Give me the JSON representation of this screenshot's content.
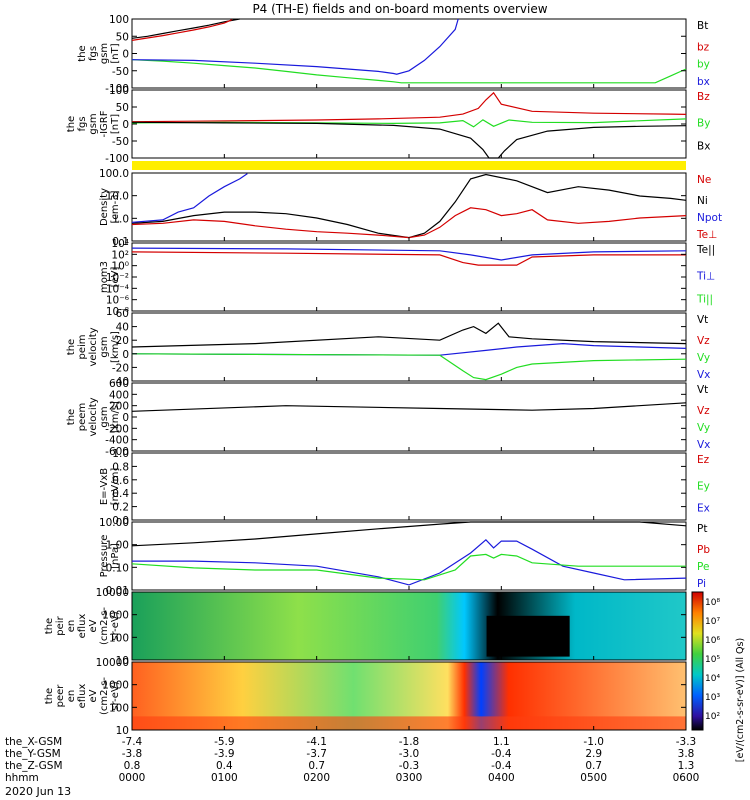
{
  "title": "P4 (TH-E) fields and on-board moments overview",
  "date_label": "2020 Jun 13",
  "colors": {
    "black": "#000000",
    "red": "#d40000",
    "green": "#22dd22",
    "blue": "#1a1adc",
    "yellow": "#ffee00"
  },
  "chart_data": [
    {
      "type": "line",
      "id": "fgs",
      "ylabel": [
        "the",
        "fgs",
        "gsm",
        "[nT]"
      ],
      "ylim": [
        -100,
        100
      ],
      "ticks": [
        "100",
        "50",
        "0",
        "-50",
        "-100"
      ],
      "legend": [
        {
          "name": "Bt",
          "color": "black"
        },
        {
          "name": "bz",
          "color": "red"
        },
        {
          "name": "by",
          "color": "green"
        },
        {
          "name": "bx",
          "color": "blue"
        }
      ],
      "series": [
        {
          "name": "Bt",
          "color": "black",
          "x": [
            0,
            10,
            20,
            30,
            40,
            50,
            60,
            70
          ],
          "y": [
            44,
            50,
            58,
            66,
            74,
            82,
            92,
            100
          ]
        },
        {
          "name": "bz",
          "color": "red",
          "x": [
            0,
            10,
            20,
            30,
            40,
            50,
            60,
            65
          ],
          "y": [
            38,
            45,
            52,
            60,
            68,
            77,
            88,
            98
          ]
        },
        {
          "name": "by",
          "color": "green",
          "x": [
            0,
            20,
            40,
            60,
            80,
            100,
            120,
            140,
            160,
            170,
            175,
            340,
            350,
            360
          ],
          "y": [
            -18,
            -22,
            -28,
            -35,
            -42,
            -52,
            -62,
            -70,
            -78,
            -82,
            -85,
            -85,
            -65,
            -45
          ]
        },
        {
          "name": "bx",
          "color": "blue",
          "x": [
            0,
            40,
            80,
            120,
            160,
            170,
            172,
            180,
            190,
            200,
            210,
            212
          ],
          "y": [
            -18,
            -20,
            -28,
            -38,
            -52,
            -58,
            -60,
            -50,
            -20,
            20,
            70,
            100
          ]
        }
      ]
    },
    {
      "type": "line",
      "id": "fgs-dsl",
      "ylabel": [
        "the",
        "fgs",
        "gsm",
        "-IGRF",
        "[nT]"
      ],
      "ylim": [
        -120,
        120
      ],
      "ticks": [
        "100",
        "50",
        "0",
        "-50",
        "-100"
      ],
      "legend": [
        {
          "name": "Bz",
          "color": "red"
        },
        {
          "name": "By",
          "color": "green"
        },
        {
          "name": "Bx",
          "color": "black"
        }
      ],
      "series": [
        {
          "name": "Bz",
          "color": "red",
          "x": [
            0,
            40,
            80,
            120,
            160,
            200,
            215,
            225,
            230,
            235,
            240,
            260,
            300,
            350,
            360
          ],
          "y": [
            8,
            10,
            12,
            14,
            18,
            24,
            35,
            55,
            85,
            110,
            70,
            45,
            38,
            35,
            34
          ]
        },
        {
          "name": "By",
          "color": "green",
          "x": [
            0,
            60,
            120,
            170,
            200,
            215,
            222,
            228,
            235,
            245,
            260,
            300,
            360
          ],
          "y": [
            4,
            6,
            4,
            2,
            4,
            12,
            -10,
            15,
            -8,
            14,
            6,
            5,
            18
          ]
        },
        {
          "name": "Bx",
          "color": "black",
          "x": [
            0,
            60,
            120,
            170,
            200,
            220,
            228,
            232,
            238,
            242,
            250,
            270,
            300,
            330,
            360
          ],
          "y": [
            6,
            4,
            2,
            -5,
            -18,
            -50,
            -90,
            -120,
            -120,
            -95,
            -55,
            -25,
            -12,
            -8,
            -6
          ]
        }
      ]
    },
    {
      "type": "line",
      "id": "density",
      "ylabel": [
        "Density",
        "[cm-3]"
      ],
      "ylim": [
        0.1,
        300
      ],
      "log": true,
      "ticks": [
        "100.0",
        "10.0",
        "1.0",
        "0.1"
      ],
      "legend": [
        {
          "name": "Ne",
          "color": "red"
        },
        {
          "name": "Ni",
          "color": "black"
        },
        {
          "name": "Npot",
          "color": "blue"
        },
        {
          "name": "Te⊥",
          "color": "red"
        }
      ],
      "series": [
        {
          "name": "Ni",
          "color": "black",
          "x": [
            0,
            20,
            40,
            60,
            80,
            100,
            120,
            140,
            160,
            180,
            190,
            200,
            210,
            220,
            230,
            250,
            270,
            290,
            310,
            330,
            350,
            360
          ],
          "y": [
            0.8,
            1.0,
            2.0,
            3.0,
            3.0,
            2.5,
            1.5,
            0.7,
            0.25,
            0.15,
            0.25,
            1.0,
            10,
            150,
            250,
            120,
            30,
            60,
            40,
            20,
            15,
            12
          ]
        },
        {
          "name": "Ne",
          "color": "red",
          "x": [
            0,
            20,
            40,
            60,
            80,
            100,
            120,
            140,
            160,
            180,
            190,
            200,
            210,
            220,
            230,
            240,
            250,
            260,
            270,
            290,
            310,
            330,
            360
          ],
          "y": [
            0.7,
            0.8,
            1.2,
            1.0,
            0.6,
            0.4,
            0.3,
            0.25,
            0.2,
            0.15,
            0.2,
            0.5,
            2,
            5,
            4,
            2,
            2.5,
            4,
            1.2,
            0.8,
            1.0,
            1.5,
            2.0
          ]
        },
        {
          "name": "Npot",
          "color": "blue",
          "x": [
            0,
            20,
            30,
            40,
            50,
            60,
            70,
            75
          ],
          "y": [
            0.9,
            1.2,
            3,
            5,
            20,
            60,
            150,
            280
          ]
        }
      ]
    },
    {
      "type": "line",
      "id": "moms",
      "ylabel": [
        "mom3",
        "[eV]"
      ],
      "ylim": [
        1,
        10000
      ],
      "log": true,
      "ticks": [
        "10⁴",
        "10²",
        "10⁰",
        "10⁻²",
        "10⁻⁴",
        "10⁻⁶",
        "10⁻⁸"
      ],
      "legend": [
        {
          "name": "Te||",
          "color": "black"
        },
        {
          "name": "Ti⊥",
          "color": "blue"
        },
        {
          "name": "Ti||",
          "color": "green"
        }
      ],
      "series": [
        {
          "name": "Ti⊥",
          "color": "blue",
          "x": [
            0,
            100,
            200,
            220,
            240,
            260,
            300,
            360
          ],
          "y": [
            5000,
            4500,
            3500,
            2000,
            1000,
            2000,
            3000,
            3500
          ]
        },
        {
          "name": "Te⊥",
          "color": "red",
          "x": [
            0,
            100,
            200,
            215,
            225,
            250,
            260,
            300,
            360
          ],
          "y": [
            3000,
            2500,
            2000,
            700,
            500,
            500,
            1500,
            2000,
            2000
          ]
        }
      ]
    },
    {
      "type": "line",
      "id": "peim",
      "ylabel": [
        "the",
        "peim",
        "velocity",
        "gsm",
        "[km/s]"
      ],
      "ylim": [
        -40,
        60
      ],
      "ticks": [
        "60",
        "40",
        "20",
        "0",
        "-20",
        "-40"
      ],
      "legend": [
        {
          "name": "Vt",
          "color": "black"
        },
        {
          "name": "Vz",
          "color": "red"
        },
        {
          "name": "Vy",
          "color": "green"
        },
        {
          "name": "Vx",
          "color": "blue"
        }
      ],
      "series": [
        {
          "name": "Vt",
          "color": "black",
          "x": [
            0,
            80,
            160,
            200,
            215,
            222,
            230,
            238,
            245,
            260,
            300,
            360
          ],
          "y": [
            10,
            15,
            25,
            20,
            35,
            40,
            30,
            45,
            25,
            22,
            18,
            15
          ]
        },
        {
          "name": "Vx",
          "color": "blue",
          "x": [
            0,
            200,
            230,
            250,
            280,
            300,
            360
          ],
          "y": [
            0,
            -2,
            5,
            10,
            15,
            12,
            8
          ]
        },
        {
          "name": "Vy",
          "color": "green",
          "x": [
            0,
            200,
            215,
            222,
            230,
            240,
            250,
            260,
            300,
            360
          ],
          "y": [
            0,
            -2,
            -25,
            -35,
            -38,
            -30,
            -20,
            -15,
            -10,
            -8
          ]
        }
      ]
    },
    {
      "type": "line",
      "id": "peem",
      "ylabel": [
        "the",
        "peem",
        "velocity",
        "gsm",
        "[km/s]"
      ],
      "ylim": [
        -600,
        600
      ],
      "ticks": [
        "600",
        "400",
        "200",
        "0",
        "-200",
        "-400",
        "-600"
      ],
      "legend": [
        {
          "name": "Vt",
          "color": "black"
        },
        {
          "name": "Vz",
          "color": "red"
        },
        {
          "name": "Vy",
          "color": "green"
        },
        {
          "name": "Vx",
          "color": "blue"
        }
      ],
      "series": [
        {
          "name": "Vt",
          "color": "black",
          "x": [
            0,
            100,
            200,
            260,
            300,
            360
          ],
          "y": [
            100,
            200,
            150,
            120,
            150,
            250
          ]
        }
      ]
    },
    {
      "type": "line",
      "id": "efield",
      "ylabel": [
        "E=-VxB",
        "[mV/m]"
      ],
      "ylim": [
        0,
        1
      ],
      "ticks": [
        "1.0",
        "0.8",
        "0.6",
        "0.4",
        "0.2",
        "0.0"
      ],
      "legend": [
        {
          "name": "Ez",
          "color": "red"
        },
        {
          "name": "Ey",
          "color": "green"
        },
        {
          "name": "Ex",
          "color": "blue"
        }
      ],
      "series": []
    },
    {
      "type": "line",
      "id": "pressure",
      "ylabel": [
        "Pressure",
        "[nPa]"
      ],
      "ylim": [
        0.002,
        20
      ],
      "log": true,
      "ticks": [
        "10.00",
        "1.00",
        "0.10",
        "0.01"
      ],
      "legend": [
        {
          "name": "Pt",
          "color": "black"
        },
        {
          "name": "Pb",
          "color": "red"
        },
        {
          "name": "Pe",
          "color": "green"
        },
        {
          "name": "Pi",
          "color": "blue"
        }
      ],
      "series": [
        {
          "name": "Pt",
          "color": "black",
          "x": [
            0,
            40,
            80,
            120,
            160,
            200,
            220,
            330,
            360
          ],
          "y": [
            0.8,
            1.2,
            2,
            4,
            8,
            15,
            20,
            20,
            12
          ]
        },
        {
          "name": "Pi",
          "color": "blue",
          "x": [
            0,
            40,
            80,
            120,
            160,
            180,
            200,
            220,
            230,
            235,
            240,
            250,
            260,
            280,
            300,
            320,
            360
          ],
          "y": [
            0.1,
            0.1,
            0.08,
            0.05,
            0.012,
            0.004,
            0.02,
            0.3,
            1.8,
            0.6,
            1.5,
            1.5,
            0.5,
            0.05,
            0.02,
            0.008,
            0.01
          ]
        },
        {
          "name": "Pe",
          "color": "green",
          "x": [
            0,
            40,
            80,
            120,
            160,
            190,
            210,
            220,
            230,
            235,
            240,
            250,
            260,
            290,
            330,
            360
          ],
          "y": [
            0.07,
            0.04,
            0.03,
            0.03,
            0.01,
            0.008,
            0.03,
            0.2,
            0.25,
            0.15,
            0.25,
            0.2,
            0.08,
            0.05,
            0.05,
            0.05
          ]
        }
      ]
    },
    {
      "type": "heatmap",
      "id": "peir",
      "ylabel": [
        "the",
        "peir",
        "en",
        "eflux",
        "eV",
        "(cm2-s-",
        "sr-eV)"
      ],
      "ticks": [
        "10000",
        "1000",
        "100",
        "10"
      ]
    },
    {
      "type": "heatmap",
      "id": "peer",
      "ylabel": [
        "the",
        "peer",
        "en",
        "eflux",
        "eV",
        "(cm2-s-",
        "sr-eV)"
      ],
      "ticks": [
        "10000",
        "1000",
        "100",
        "10"
      ]
    }
  ],
  "colorbar": {
    "ticks": [
      "10⁸",
      "10⁷",
      "10⁶",
      "10⁵",
      "10⁴",
      "10³",
      "10²"
    ],
    "label": "[eV/(cm2-s-sr-eV)] (All Qs)"
  },
  "ephemeris": {
    "rows": [
      {
        "label": "the_X-GSM",
        "values": [
          "-7.4",
          "-5.9",
          "-4.1",
          "-1.8",
          "1.1",
          "-1.0",
          "-3.3"
        ]
      },
      {
        "label": "the_Y-GSM",
        "values": [
          "-3.8",
          "-3.9",
          "-3.7",
          "-3.0",
          "-0.4",
          "2.9",
          "3.8"
        ]
      },
      {
        "label": "the_Z-GSM",
        "values": [
          "0.8",
          "0.4",
          "0.7",
          "-0.3",
          "-0.4",
          "0.7",
          "1.3"
        ]
      },
      {
        "label": "hhmm",
        "values": [
          "0000",
          "0100",
          "0200",
          "0300",
          "0400",
          "0500",
          "0600"
        ]
      }
    ]
  }
}
